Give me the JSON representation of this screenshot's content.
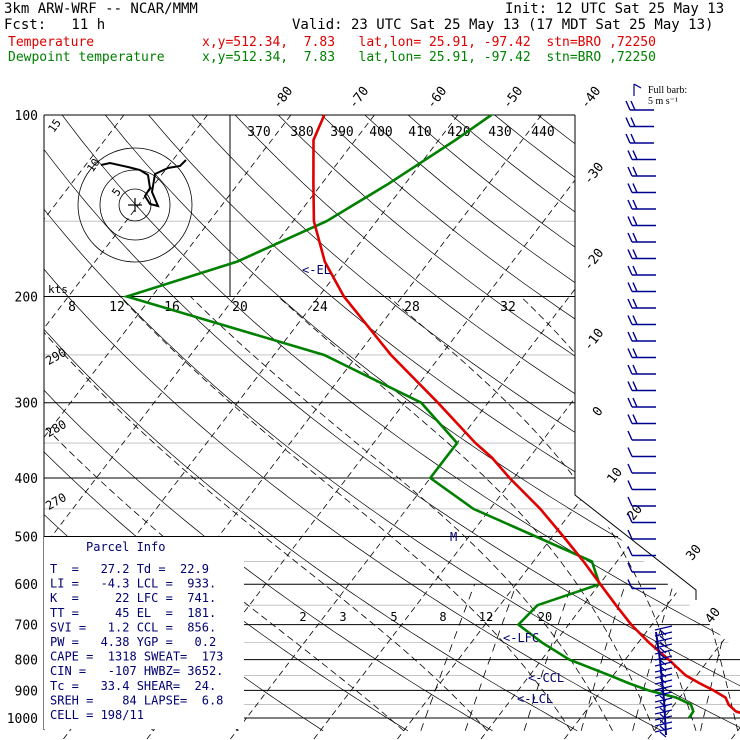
{
  "header": {
    "model": "3km ARW-WRF -- NCAR/MMM",
    "init": "Init: 12 UTC Sat 25 May 13",
    "fcst": "Fcst:   11 h",
    "valid": "Valid: 23 UTC Sat 25 May 13 (17 MDT Sat 25 May 13)",
    "temp_label": "Temperature",
    "temp_info": "x,y=512.34,  7.83   lat,lon= 25.91, -97.42  stn=BRO ,72250",
    "dew_label": "Dewpoint temperature",
    "dew_info": "x,y=512.34,  7.83   lat,lon= 25.91, -97.42  stn=BRO ,72250"
  },
  "barb_legend": {
    "line1": "Full barb:",
    "line2": "5 m s⁻¹"
  },
  "labels": {
    "kts": "kts",
    "el_marker": "<-EL",
    "lfc_marker": "<-LFC",
    "ccl_marker": "<-CCL",
    "lcl_marker": "<-LCL",
    "m_marker": "M"
  },
  "parcel_info": {
    "title": "Parcel Info",
    "rows": [
      "T  =   27.2 Td =  22.9",
      "LI =   -4.3 LCL =  933.",
      "K  =     22 LFC =  741.",
      "TT =     45 EL  =  181.",
      "SVI =   1.2 CCL =  856.",
      "PW =   4.38 YGP =   0.2",
      "CAPE =  1318 SWEAT=  173",
      "CIN =   -107 HWBZ= 3652.",
      "Tc =   33.4 SHEAR=  24.",
      "SREH =    84 LAPSE=  6.8",
      "CELL = 198/11"
    ]
  },
  "hodograph": {
    "ring_labels": [
      "5",
      "10",
      "15"
    ],
    "speed_ticks": [
      "8",
      "12",
      "16",
      "20",
      "24",
      "28",
      "32"
    ]
  },
  "colors": {
    "temperature": "#e00000",
    "dewpoint": "#008000",
    "isotherm": "#000000",
    "dry_adiabat": "#000000",
    "moist_adiabat": "#000000",
    "mixing_ratio": "#000000",
    "barb": "#000090",
    "parcel_text": "#000070",
    "pressure_gridline": "#000000",
    "hodograph": "#000000"
  },
  "chart_data": {
    "type": "line",
    "title": "",
    "xlabel": "",
    "ylabel": "",
    "y_scale": "log",
    "pressure_levels_hpa": [
      100,
      200,
      300,
      400,
      500,
      600,
      700,
      800,
      900,
      1000
    ],
    "pressure_tick_labels": [
      "100",
      "200",
      "300",
      "400",
      "500",
      "600",
      "700",
      "800",
      "900",
      "1000"
    ],
    "isotherm_labels_c": [
      "-80",
      "-70",
      "-60",
      "-50",
      "-40",
      "-30",
      "-20",
      "-10",
      "0",
      "10",
      "20",
      "30",
      "40"
    ],
    "theta_labels_k": [
      "370",
      "380",
      "390",
      "400",
      "410",
      "420",
      "430",
      "440"
    ],
    "side_theta_labels_k": [
      "290",
      "280",
      "270"
    ],
    "mixing_ratio_labels": [
      "2",
      "3",
      "5",
      "8",
      "12",
      "20"
    ],
    "series": [
      {
        "name": "Temperature",
        "pressure_hpa": [
          1000,
          975,
          950,
          925,
          900,
          875,
          850,
          800,
          750,
          700,
          650,
          600,
          550,
          500,
          450,
          400,
          370,
          350,
          300,
          250,
          200,
          175,
          150,
          130,
          110,
          100
        ],
        "temp_c": [
          31.0,
          28.0,
          26.5,
          25.5,
          23.4,
          21.0,
          18.7,
          15.2,
          11.3,
          7.5,
          3.9,
          0.1,
          -4.0,
          -8.7,
          -14.0,
          -20.5,
          -24.5,
          -27.8,
          -36.0,
          -46.0,
          -57.0,
          -62.5,
          -67.5,
          -71.0,
          -75.0,
          -76.0
        ]
      },
      {
        "name": "Dewpoint temperature",
        "pressure_hpa": [
          1000,
          975,
          950,
          925,
          900,
          875,
          850,
          800,
          750,
          700,
          650,
          600,
          550,
          500,
          450,
          400,
          370,
          350,
          300,
          250,
          200,
          175,
          150,
          130,
          110,
          100
        ],
        "temp_c": [
          23.0,
          22.9,
          22.0,
          19.6,
          15.6,
          12.5,
          9.6,
          3.3,
          -1.5,
          -6.0,
          -5.5,
          0.0,
          -3.0,
          -12.0,
          -22.0,
          -30.0,
          -30.0,
          -30.0,
          -38.0,
          -54.0,
          -83.0,
          -73.0,
          -66.0,
          -62.0,
          -58.0,
          -56.0
        ]
      }
    ]
  }
}
